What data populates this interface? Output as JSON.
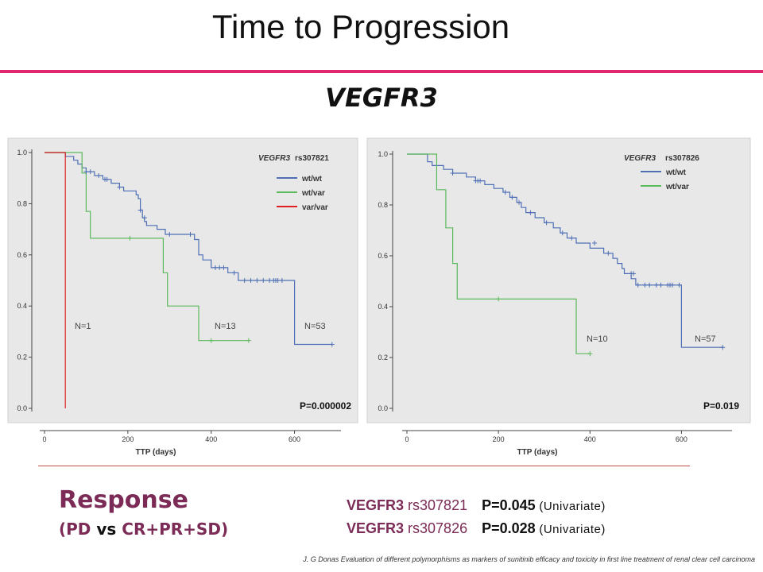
{
  "slide": {
    "title": "Time to Progression",
    "subtitle": "VEGFR3",
    "colors": {
      "accent_rule": "#e0286e",
      "response_text": "#7b2b55",
      "divider": "#c0504d"
    }
  },
  "response": {
    "heading": "Response",
    "sub_open": "(",
    "sub_pd": "PD",
    "sub_vs": " vs ",
    "sub_rest": "CR+PR+SD",
    "sub_close": ")",
    "lines": [
      {
        "gene": "VEGFR3",
        "snp": " rs307821",
        "p": "P=0.045",
        "note": " (Univariate)"
      },
      {
        "gene": "VEGFR3",
        "snp": " rs307826",
        "p": "P=0.028",
        "note": " (Univariate)"
      }
    ]
  },
  "citation": "J. G Donas Evaluation of different polymorphisms as markers of sunitinib efficacy and toxicity in first line treatment of renal clear cell carcinoma",
  "chart_data": [
    {
      "type": "line",
      "step": true,
      "title": "",
      "xlabel": "TTP (days)",
      "ylabel": "",
      "xlim": [
        0,
        700
      ],
      "ylim": [
        0,
        1.0
      ],
      "x_ticks": [
        0,
        200,
        400,
        600
      ],
      "y_ticks": [
        0.0,
        0.2,
        0.4,
        0.6,
        0.8,
        1.0
      ],
      "y_tick_labels": [
        "0.0",
        "0.2",
        "0.4",
        "0.6",
        "0.8",
        "1.0"
      ],
      "legend_title_gene": "VEGFR3",
      "legend_title_snp": "rs307821",
      "legend_placement": "top-right",
      "p_value": "P=0.000002",
      "n_labels": [
        "N=1",
        "N=13",
        "N=53"
      ],
      "grid": false,
      "series": [
        {
          "name": "wt/wt",
          "color": "#4e6fb5",
          "points": [
            [
              0,
              1.0
            ],
            [
              50,
              1.0
            ],
            [
              50,
              0.985
            ],
            [
              70,
              0.985
            ],
            [
              70,
              0.97
            ],
            [
              80,
              0.97
            ],
            [
              80,
              0.955
            ],
            [
              90,
              0.955
            ],
            [
              90,
              0.94
            ],
            [
              100,
              0.94
            ],
            [
              100,
              0.925
            ],
            [
              120,
              0.925
            ],
            [
              120,
              0.91
            ],
            [
              140,
              0.91
            ],
            [
              140,
              0.895
            ],
            [
              160,
              0.895
            ],
            [
              160,
              0.88
            ],
            [
              180,
              0.88
            ],
            [
              180,
              0.865
            ],
            [
              190,
              0.865
            ],
            [
              190,
              0.85
            ],
            [
              220,
              0.85
            ],
            [
              220,
              0.835
            ],
            [
              225,
              0.835
            ],
            [
              225,
              0.82
            ],
            [
              230,
              0.82
            ],
            [
              230,
              0.775
            ],
            [
              235,
              0.775
            ],
            [
              235,
              0.745
            ],
            [
              240,
              0.745
            ],
            [
              240,
              0.73
            ],
            [
              245,
              0.73
            ],
            [
              245,
              0.715
            ],
            [
              270,
              0.715
            ],
            [
              270,
              0.7
            ],
            [
              290,
              0.7
            ],
            [
              290,
              0.68
            ],
            [
              360,
              0.68
            ],
            [
              360,
              0.66
            ],
            [
              370,
              0.66
            ],
            [
              370,
              0.6
            ],
            [
              380,
              0.6
            ],
            [
              380,
              0.58
            ],
            [
              400,
              0.58
            ],
            [
              400,
              0.55
            ],
            [
              440,
              0.55
            ],
            [
              440,
              0.53
            ],
            [
              465,
              0.53
            ],
            [
              465,
              0.5
            ],
            [
              600,
              0.5
            ],
            [
              600,
              0.25
            ],
            [
              690,
              0.25
            ]
          ],
          "censored": [
            [
              100,
              0.925
            ],
            [
              110,
              0.925
            ],
            [
              130,
              0.91
            ],
            [
              145,
              0.895
            ],
            [
              150,
              0.895
            ],
            [
              180,
              0.865
            ],
            [
              230,
              0.775
            ],
            [
              240,
              0.745
            ],
            [
              300,
              0.68
            ],
            [
              350,
              0.68
            ],
            [
              410,
              0.55
            ],
            [
              420,
              0.55
            ],
            [
              430,
              0.55
            ],
            [
              455,
              0.53
            ],
            [
              480,
              0.5
            ],
            [
              495,
              0.5
            ],
            [
              510,
              0.5
            ],
            [
              525,
              0.5
            ],
            [
              540,
              0.5
            ],
            [
              550,
              0.5
            ],
            [
              555,
              0.5
            ],
            [
              560,
              0.5
            ],
            [
              570,
              0.5
            ],
            [
              690,
              0.25
            ]
          ]
        },
        {
          "name": "wt/var",
          "color": "#5cb85c",
          "points": [
            [
              0,
              1.0
            ],
            [
              90,
              1.0
            ],
            [
              90,
              0.92
            ],
            [
              100,
              0.92
            ],
            [
              100,
              0.77
            ],
            [
              110,
              0.77
            ],
            [
              110,
              0.665
            ],
            [
              285,
              0.665
            ],
            [
              285,
              0.53
            ],
            [
              295,
              0.53
            ],
            [
              295,
              0.4
            ],
            [
              370,
              0.4
            ],
            [
              370,
              0.265
            ],
            [
              490,
              0.265
            ]
          ],
          "censored": [
            [
              205,
              0.665
            ],
            [
              400,
              0.265
            ],
            [
              490,
              0.265
            ]
          ]
        },
        {
          "name": "var/var",
          "color": "#e02020",
          "points": [
            [
              0,
              1.0
            ],
            [
              50,
              1.0
            ],
            [
              50,
              0.0
            ]
          ],
          "censored": []
        }
      ]
    },
    {
      "type": "line",
      "step": true,
      "title": "",
      "xlabel": "TTP (days)",
      "ylabel": "",
      "xlim": [
        0,
        700
      ],
      "ylim": [
        0,
        1.0
      ],
      "x_ticks": [
        0,
        200,
        400,
        600
      ],
      "y_ticks": [
        0.0,
        0.2,
        0.4,
        0.6,
        0.8,
        1.0
      ],
      "y_tick_labels": [
        "0.0",
        "0.2",
        "0.4",
        "0.6",
        "0.8",
        "1.0"
      ],
      "legend_title_gene": "VEGFR3",
      "legend_title_snp": "rs307826",
      "legend_placement": "top-right",
      "p_value": "P=0.019",
      "n_labels": [
        "N=10",
        "N=57"
      ],
      "grid": false,
      "series": [
        {
          "name": "wt/wt",
          "color": "#4e6fb5",
          "points": [
            [
              0,
              1.0
            ],
            [
              45,
              1.0
            ],
            [
              45,
              0.97
            ],
            [
              55,
              0.97
            ],
            [
              55,
              0.955
            ],
            [
              80,
              0.955
            ],
            [
              80,
              0.94
            ],
            [
              100,
              0.94
            ],
            [
              100,
              0.925
            ],
            [
              130,
              0.925
            ],
            [
              130,
              0.91
            ],
            [
              150,
              0.91
            ],
            [
              150,
              0.895
            ],
            [
              170,
              0.895
            ],
            [
              170,
              0.88
            ],
            [
              190,
              0.88
            ],
            [
              190,
              0.865
            ],
            [
              210,
              0.865
            ],
            [
              210,
              0.85
            ],
            [
              225,
              0.85
            ],
            [
              225,
              0.83
            ],
            [
              240,
              0.83
            ],
            [
              240,
              0.81
            ],
            [
              250,
              0.81
            ],
            [
              250,
              0.79
            ],
            [
              260,
              0.79
            ],
            [
              260,
              0.77
            ],
            [
              280,
              0.77
            ],
            [
              280,
              0.75
            ],
            [
              300,
              0.75
            ],
            [
              300,
              0.73
            ],
            [
              320,
              0.73
            ],
            [
              320,
              0.71
            ],
            [
              335,
              0.71
            ],
            [
              335,
              0.69
            ],
            [
              350,
              0.69
            ],
            [
              350,
              0.67
            ],
            [
              370,
              0.67
            ],
            [
              370,
              0.65
            ],
            [
              400,
              0.65
            ],
            [
              400,
              0.63
            ],
            [
              430,
              0.63
            ],
            [
              430,
              0.61
            ],
            [
              450,
              0.61
            ],
            [
              450,
              0.59
            ],
            [
              460,
              0.59
            ],
            [
              460,
              0.57
            ],
            [
              470,
              0.57
            ],
            [
              470,
              0.55
            ],
            [
              475,
              0.55
            ],
            [
              475,
              0.53
            ],
            [
              490,
              0.53
            ],
            [
              490,
              0.51
            ],
            [
              500,
              0.51
            ],
            [
              500,
              0.485
            ],
            [
              600,
              0.485
            ],
            [
              600,
              0.24
            ],
            [
              690,
              0.24
            ]
          ],
          "censored": [
            [
              100,
              0.925
            ],
            [
              150,
              0.895
            ],
            [
              155,
              0.895
            ],
            [
              160,
              0.895
            ],
            [
              215,
              0.85
            ],
            [
              230,
              0.83
            ],
            [
              245,
              0.81
            ],
            [
              270,
              0.77
            ],
            [
              305,
              0.73
            ],
            [
              340,
              0.69
            ],
            [
              360,
              0.67
            ],
            [
              410,
              0.65
            ],
            [
              440,
              0.61
            ],
            [
              490,
              0.53
            ],
            [
              495,
              0.53
            ],
            [
              505,
              0.485
            ],
            [
              520,
              0.485
            ],
            [
              530,
              0.485
            ],
            [
              545,
              0.485
            ],
            [
              555,
              0.485
            ],
            [
              570,
              0.485
            ],
            [
              575,
              0.485
            ],
            [
              580,
              0.485
            ],
            [
              595,
              0.485
            ],
            [
              690,
              0.24
            ]
          ]
        },
        {
          "name": "wt/var",
          "color": "#5cb85c",
          "points": [
            [
              0,
              1.0
            ],
            [
              65,
              1.0
            ],
            [
              65,
              0.86
            ],
            [
              85,
              0.86
            ],
            [
              85,
              0.71
            ],
            [
              100,
              0.71
            ],
            [
              100,
              0.57
            ],
            [
              110,
              0.57
            ],
            [
              110,
              0.43
            ],
            [
              370,
              0.43
            ],
            [
              370,
              0.215
            ],
            [
              400,
              0.215
            ]
          ],
          "censored": [
            [
              200,
              0.43
            ],
            [
              400,
              0.215
            ]
          ]
        }
      ]
    }
  ]
}
